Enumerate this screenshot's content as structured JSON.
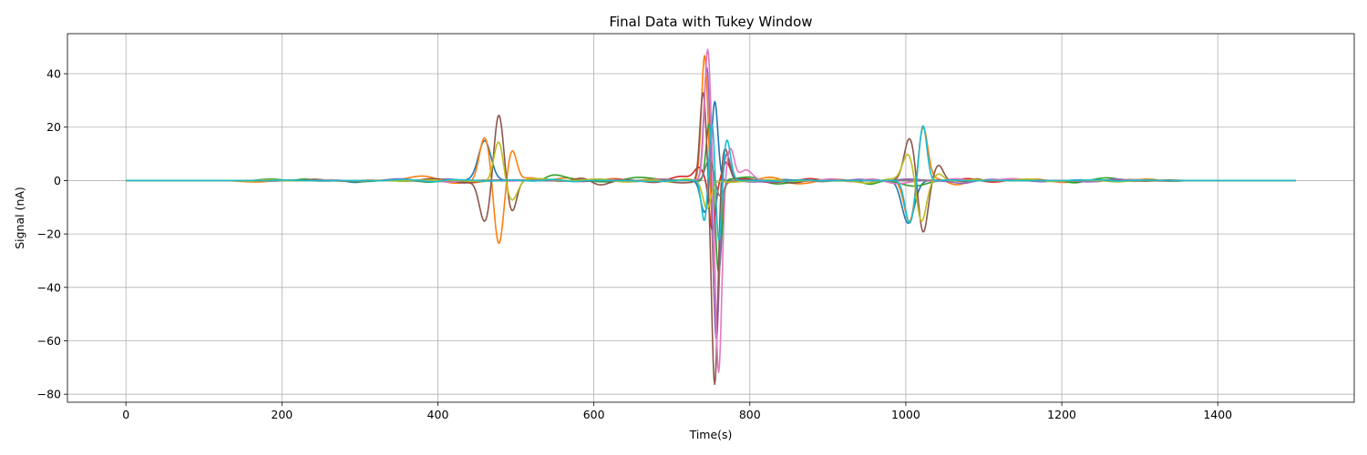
{
  "chart_data": {
    "type": "line",
    "title": "Final Data with Tukey Window",
    "xlabel": "Time(s)",
    "ylabel": "Signal (nA)",
    "xlim": [
      -75,
      1575
    ],
    "ylim": [
      -83,
      55
    ],
    "xticks": [
      0,
      200,
      400,
      600,
      800,
      1000,
      1200,
      1400
    ],
    "yticks": [
      -80,
      -60,
      -40,
      -20,
      0,
      20,
      40
    ],
    "grid": true,
    "x_range": [
      0,
      1500
    ],
    "series": [
      {
        "color": "#1f77b4",
        "events": [
          [
            460,
            15,
            8
          ],
          [
            742,
            -12,
            5
          ],
          [
            755,
            30,
            4
          ],
          [
            1003,
            -16,
            8
          ]
        ],
        "noise": 0.4
      },
      {
        "color": "#ff7f0e",
        "events": [
          [
            460,
            16,
            7
          ],
          [
            478,
            -24,
            6
          ],
          [
            495,
            12,
            6
          ],
          [
            742,
            47,
            4
          ],
          [
            757,
            -55,
            4
          ],
          [
            1005,
            -16,
            7
          ],
          [
            1022,
            20,
            6
          ]
        ],
        "noise": 1.5
      },
      {
        "color": "#2ca02c",
        "events": [
          [
            545,
            2,
            10
          ],
          [
            748,
            22,
            4
          ],
          [
            760,
            -35,
            4
          ],
          [
            955,
            -2,
            10
          ]
        ],
        "noise": 1.4
      },
      {
        "color": "#d62728",
        "events": [
          [
            735,
            5,
            6
          ],
          [
            752,
            -18,
            4
          ],
          [
            770,
            7,
            5
          ]
        ],
        "noise": 0.9
      },
      {
        "color": "#9467bd",
        "events": [
          [
            745,
            43,
            4
          ],
          [
            757,
            -60,
            4
          ],
          [
            770,
            10,
            5
          ]
        ],
        "noise": 0.8
      },
      {
        "color": "#8c564b",
        "events": [
          [
            460,
            -16,
            7
          ],
          [
            478,
            25,
            6
          ],
          [
            495,
            -12,
            6
          ],
          [
            740,
            33,
            4
          ],
          [
            755,
            -77,
            4
          ],
          [
            768,
            12,
            5
          ],
          [
            1005,
            16,
            7
          ],
          [
            1022,
            -20,
            6
          ],
          [
            1042,
            6,
            6
          ]
        ],
        "noise": 1.2
      },
      {
        "color": "#e377c2",
        "events": [
          [
            746,
            49,
            4
          ],
          [
            760,
            -72,
            4
          ],
          [
            775,
            12,
            5
          ],
          [
            795,
            4,
            8
          ]
        ],
        "noise": 0.9
      },
      {
        "color": "#7f7f7f",
        "events": [
          [
            748,
            8,
            5
          ],
          [
            762,
            -6,
            5
          ]
        ],
        "noise": 0.5
      },
      {
        "color": "#bcbd22",
        "events": [
          [
            478,
            15,
            6
          ],
          [
            495,
            -7,
            7
          ],
          [
            745,
            -10,
            5
          ],
          [
            1003,
            10,
            7
          ],
          [
            1020,
            -15,
            6
          ],
          [
            1042,
            3,
            6
          ]
        ],
        "noise": 1.0
      },
      {
        "color": "#17becf",
        "events": [
          [
            742,
            -16,
            4
          ],
          [
            752,
            25,
            4
          ],
          [
            760,
            -28,
            4
          ],
          [
            770,
            16,
            5
          ],
          [
            1022,
            21,
            5
          ],
          [
            1005,
            -16,
            6
          ]
        ],
        "noise": 0.6
      }
    ]
  }
}
